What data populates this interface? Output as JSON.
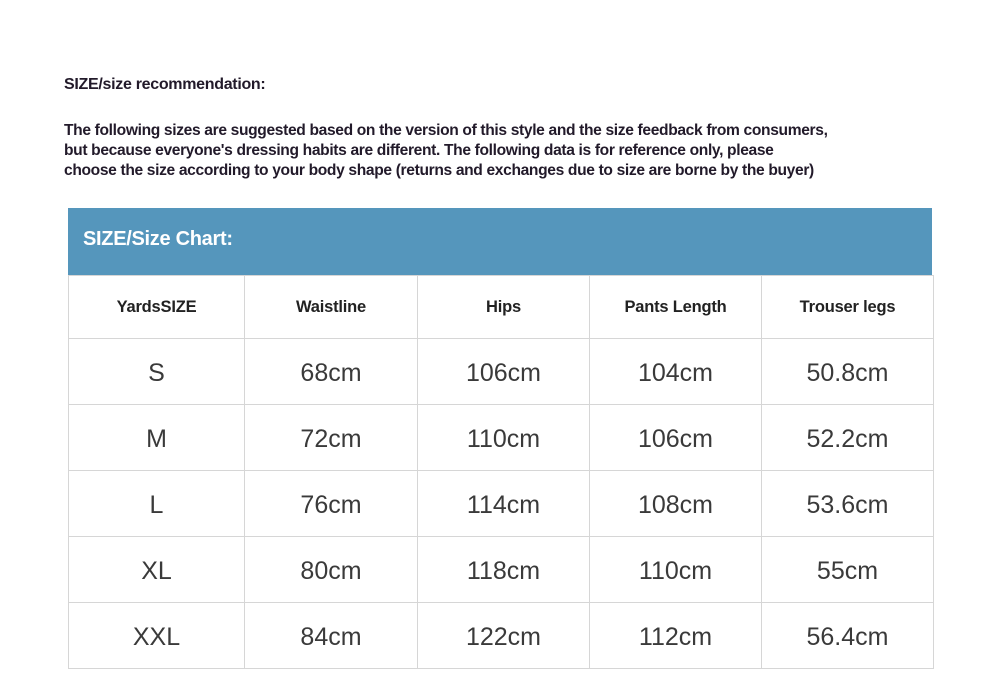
{
  "title": "SIZE/size recommendation:",
  "description": [
    "The following sizes are suggested based on the version of this style and the size feedback from consumers,",
    "but because everyone's dressing habits are different. The following data is for reference only, please",
    "choose the size according to your body shape (returns and exchanges due to size are borne by the buyer)"
  ],
  "accent_color": "#5596bc",
  "chart_title": "SIZE/Size Chart:",
  "table": {
    "headers": [
      "YardsSIZE",
      "Waistline",
      "Hips",
      "Pants Length",
      "Trouser legs"
    ],
    "rows": [
      [
        "S",
        "68cm",
        "106cm",
        "104cm",
        "50.8cm"
      ],
      [
        "M",
        "72cm",
        "110cm",
        "106cm",
        "52.2cm"
      ],
      [
        "L",
        "76cm",
        "114cm",
        "108cm",
        "53.6cm"
      ],
      [
        "XL",
        "80cm",
        "118cm",
        "110cm",
        "55cm"
      ],
      [
        "XXL",
        "84cm",
        "122cm",
        "112cm",
        "56.4cm"
      ]
    ]
  }
}
